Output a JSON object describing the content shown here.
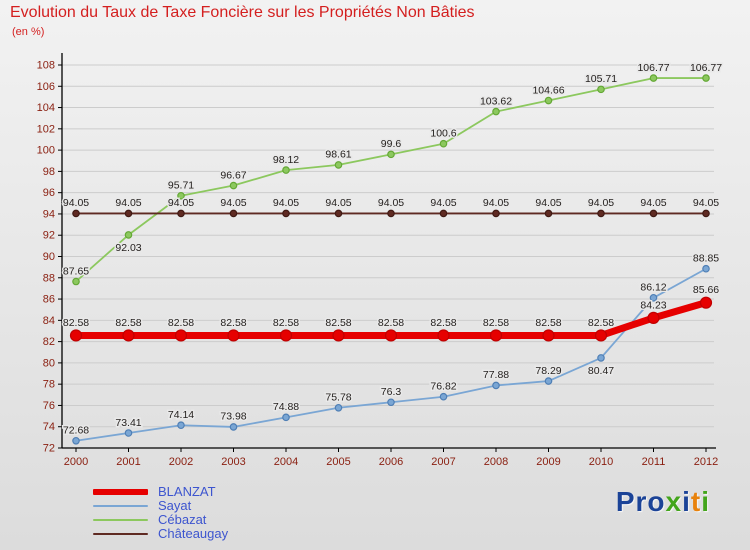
{
  "header": {
    "title": "Evolution du Taux de Taxe Foncière sur les Propriétés Non Bâties",
    "subtitle": "(en %)"
  },
  "chart_data": {
    "type": "line",
    "x": [
      2000,
      2001,
      2002,
      2003,
      2004,
      2005,
      2006,
      2007,
      2008,
      2009,
      2010,
      2011,
      2012
    ],
    "ylim": [
      72,
      108
    ],
    "ytick_step": 2,
    "grid": true,
    "legend_position": "bottom-left",
    "series": [
      {
        "name": "Cébazat",
        "color": "#8cc85e",
        "marker_color": "#64a835",
        "line_width": 1.8,
        "marker_radius": 3.2,
        "values": [
          87.65,
          92.03,
          95.71,
          96.67,
          98.12,
          98.61,
          99.6,
          100.6,
          103.62,
          104.66,
          105.71,
          106.77,
          106.77
        ],
        "below_labels": [
          1
        ]
      },
      {
        "name": "Châteaugay",
        "color": "#5f2a22",
        "marker_color": "#401a14",
        "line_width": 1.8,
        "marker_radius": 3.2,
        "values": [
          94.05,
          94.05,
          94.05,
          94.05,
          94.05,
          94.05,
          94.05,
          94.05,
          94.05,
          94.05,
          94.05,
          94.05,
          94.05
        ],
        "below_labels": []
      },
      {
        "name": "Sayat",
        "color": "#7aa6d4",
        "marker_color": "#4f7fb5",
        "line_width": 1.8,
        "marker_radius": 3.2,
        "values": [
          72.68,
          73.41,
          74.14,
          73.98,
          74.88,
          75.78,
          76.3,
          76.82,
          77.88,
          78.29,
          80.47,
          86.12,
          88.85
        ],
        "below_labels": [
          10
        ]
      },
      {
        "name": "BLANZAT",
        "color": "#e60000",
        "marker_color": "#c00000",
        "line_width": 7,
        "marker_radius": 5.5,
        "values": [
          82.58,
          82.58,
          82.58,
          82.58,
          82.58,
          82.58,
          82.58,
          82.58,
          82.58,
          82.58,
          82.58,
          84.23,
          85.66
        ],
        "below_labels": []
      }
    ]
  },
  "legend": {
    "items": [
      {
        "label": "BLANZAT",
        "color": "#e60000",
        "thick": true
      },
      {
        "label": "Sayat",
        "color": "#7aa6d4",
        "thick": false
      },
      {
        "label": "Cébazat",
        "color": "#8cc85e",
        "thick": false
      },
      {
        "label": "Châteaugay",
        "color": "#5f2a22",
        "thick": false
      }
    ]
  },
  "logo": {
    "letters": [
      {
        "ch": "P",
        "color": "#1b4397"
      },
      {
        "ch": "r",
        "color": "#1b4397"
      },
      {
        "ch": "o",
        "color": "#1b4397"
      },
      {
        "ch": "x",
        "color": "#43a51c"
      },
      {
        "ch": "i",
        "color": "#1b4397"
      },
      {
        "ch": "t",
        "color": "#e8820c"
      },
      {
        "ch": "i",
        "color": "#43a51c"
      }
    ]
  },
  "colors": {
    "title": "#d41f1f",
    "axis_text": "#8a1f10",
    "value_labels": "#262220",
    "grid": "#cccccc",
    "axis": "#000000",
    "legend_text": "#3d55cf"
  }
}
